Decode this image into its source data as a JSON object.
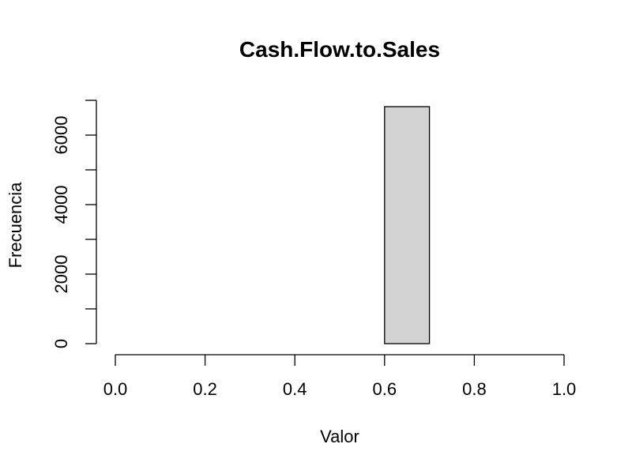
{
  "chart_data": {
    "type": "bar",
    "subtype": "histogram",
    "title": "Cash.Flow.to.Sales",
    "xlabel": "Valor",
    "ylabel": "Frecuencia",
    "bins": [
      {
        "start": 0.0,
        "end": 0.1,
        "count": 0
      },
      {
        "start": 0.1,
        "end": 0.2,
        "count": 0
      },
      {
        "start": 0.2,
        "end": 0.3,
        "count": 0
      },
      {
        "start": 0.3,
        "end": 0.4,
        "count": 0
      },
      {
        "start": 0.4,
        "end": 0.5,
        "count": 0
      },
      {
        "start": 0.5,
        "end": 0.6,
        "count": 0
      },
      {
        "start": 0.6,
        "end": 0.7,
        "count": 6818
      },
      {
        "start": 0.7,
        "end": 0.8,
        "count": 0
      },
      {
        "start": 0.8,
        "end": 0.9,
        "count": 0
      },
      {
        "start": 0.9,
        "end": 1.0,
        "count": 0
      }
    ],
    "xlim": [
      0.0,
      1.0
    ],
    "ylim": [
      0,
      7000
    ],
    "x_ticks": [
      "0.0",
      "0.2",
      "0.4",
      "0.6",
      "0.8",
      "1.0"
    ],
    "y_ticks": [
      "0",
      "2000",
      "4000",
      "6000"
    ],
    "grid": false,
    "bar_color": "#d3d3d3",
    "edge_color": "#000000"
  }
}
